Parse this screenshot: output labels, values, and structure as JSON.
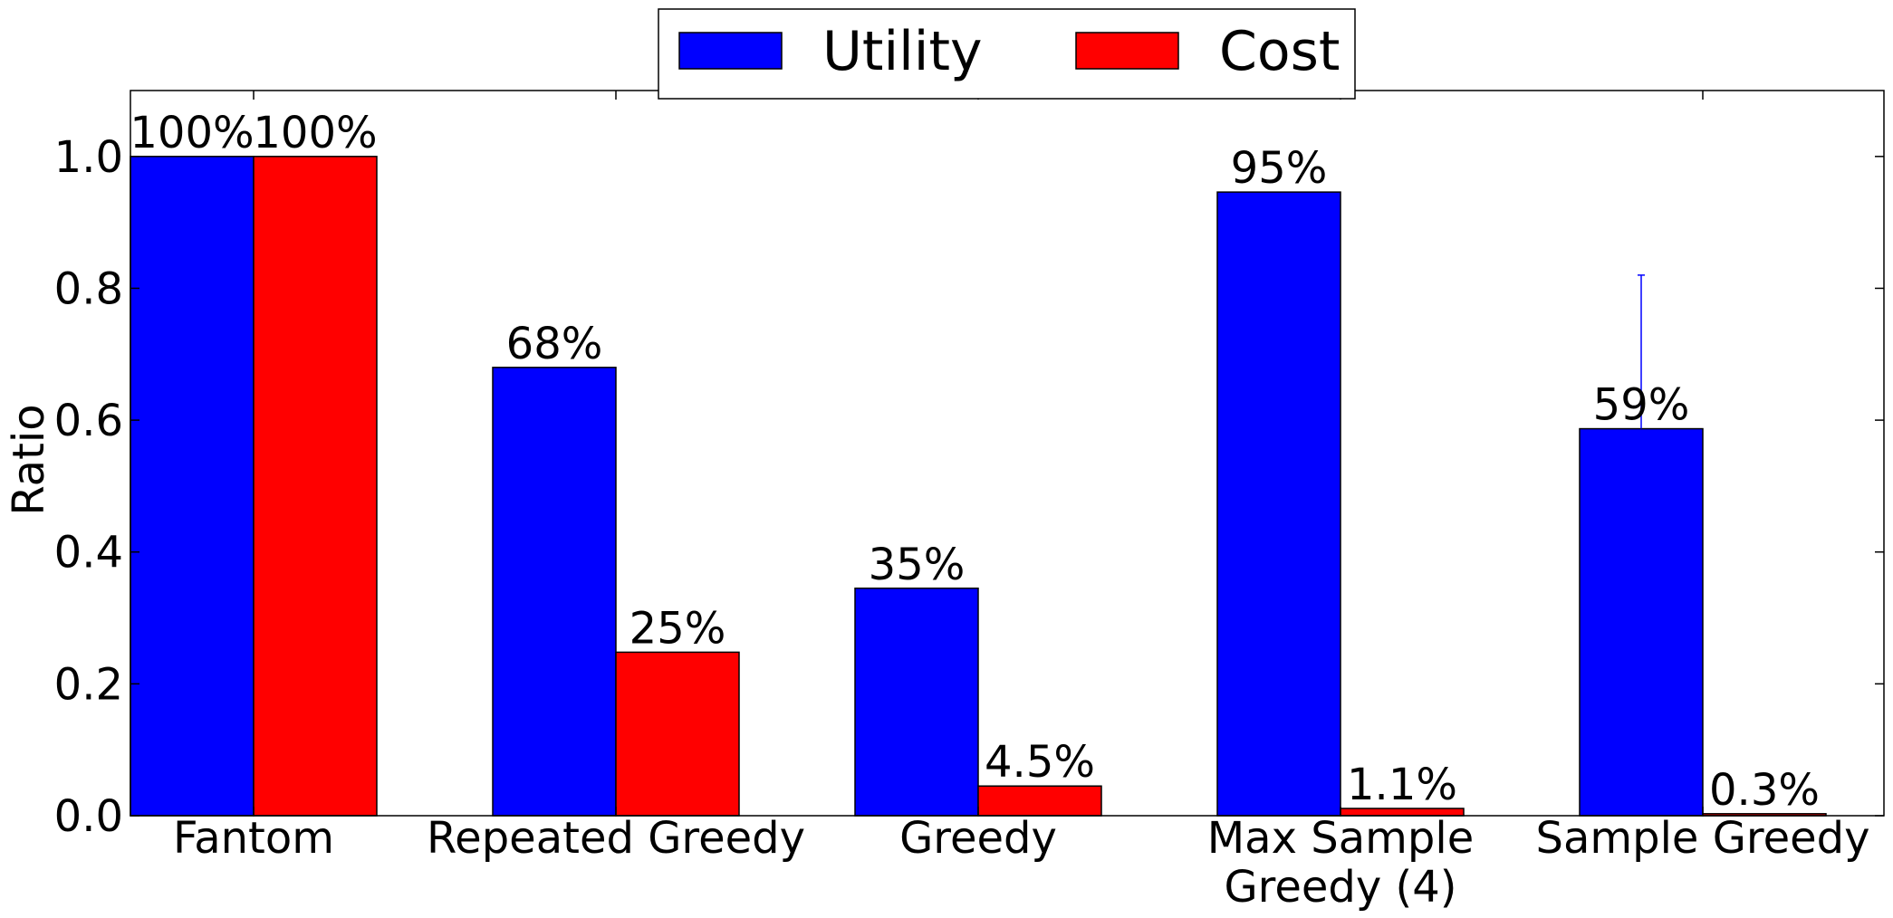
{
  "chart_data": {
    "type": "bar",
    "title": "",
    "xlabel": "",
    "ylabel": "Ratio",
    "ylim": [
      0,
      1.1
    ],
    "yticks": [
      "0.0",
      "0.2",
      "0.4",
      "0.6",
      "0.8",
      "1.0"
    ],
    "ytick_values": [
      0.0,
      0.2,
      0.4,
      0.6,
      0.8,
      1.0
    ],
    "grid": false,
    "legend_position": "top-center",
    "categories": [
      [
        "Fantom"
      ],
      [
        "Repeated Greedy"
      ],
      [
        "Greedy"
      ],
      [
        "Max Sample",
        "Greedy (4)"
      ],
      [
        "Sample Greedy"
      ]
    ],
    "series": [
      {
        "name": "Utility",
        "color": "#0000ff",
        "values": [
          1.0,
          0.68,
          0.345,
          0.946,
          0.587
        ],
        "labels": [
          "100%",
          "68%",
          "35%",
          "95%",
          "59%"
        ],
        "error_upper": [
          null,
          null,
          null,
          null,
          0.82
        ]
      },
      {
        "name": "Cost",
        "color": "#ff0000",
        "values": [
          1.0,
          0.248,
          0.045,
          0.011,
          0.003
        ],
        "labels": [
          "100%",
          "25%",
          "4.5%",
          "1.1%",
          "0.3%"
        ],
        "error_upper": [
          null,
          null,
          null,
          null,
          null
        ]
      }
    ]
  }
}
